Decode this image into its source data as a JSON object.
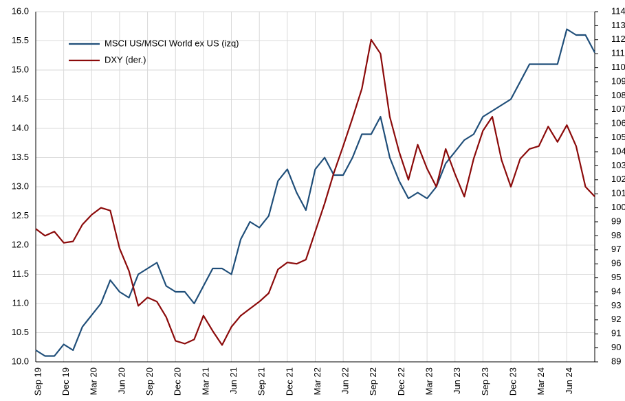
{
  "chart_data": {
    "type": "line",
    "categories": [
      "Sep 19",
      null,
      null,
      "Dec 19",
      null,
      null,
      "Mar 20",
      null,
      null,
      "Jun 20",
      null,
      null,
      "Sep 20",
      null,
      null,
      "Dec 20",
      null,
      null,
      "Mar 21",
      null,
      null,
      "Jun 21",
      null,
      null,
      "Sep 21",
      null,
      null,
      "Dec 21",
      null,
      null,
      "Mar 22",
      null,
      null,
      "Jun 22",
      null,
      null,
      "Sep 22",
      null,
      null,
      "Dec 22",
      null,
      null,
      "Mar 23",
      null,
      null,
      "Jun 23",
      null,
      null,
      "Sep 23",
      null,
      null,
      "Dec 23",
      null,
      null,
      "Mar 24",
      null,
      null,
      "Jun 24",
      null,
      null,
      null
    ],
    "series": [
      {
        "name": "MSCI US/MSCI World ex US (izq)",
        "color": "#1f4e79",
        "values": [
          10.2,
          10.1,
          10.1,
          10.3,
          10.2,
          10.6,
          10.8,
          11.0,
          11.4,
          11.2,
          11.1,
          11.5,
          11.6,
          11.7,
          11.3,
          11.2,
          11.2,
          11.0,
          11.3,
          11.6,
          11.6,
          11.5,
          12.1,
          12.4,
          12.3,
          12.5,
          13.1,
          13.3,
          12.9,
          12.6,
          13.3,
          13.5,
          13.2,
          13.2,
          13.5,
          13.9,
          13.9,
          14.2,
          13.5,
          13.1,
          12.8,
          12.9,
          12.8,
          13.0,
          13.4,
          13.6,
          13.8,
          13.9,
          14.2,
          14.3,
          14.4,
          14.5,
          14.8,
          15.1,
          15.1,
          15.1,
          15.1,
          15.7,
          15.6,
          15.6,
          15.3
        ]
      },
      {
        "name": "DXY (der.)",
        "color": "#8b0a0a",
        "axis": "y2",
        "values": [
          98.5,
          98.0,
          98.3,
          97.5,
          97.6,
          98.8,
          99.5,
          100.0,
          99.8,
          97.1,
          95.5,
          93.0,
          93.6,
          93.3,
          92.2,
          90.5,
          90.3,
          90.6,
          92.3,
          91.2,
          90.2,
          91.5,
          92.3,
          92.8,
          93.3,
          93.9,
          95.6,
          96.1,
          96.0,
          96.3,
          98.3,
          100.3,
          102.5,
          104.4,
          106.4,
          108.5,
          112.0,
          111.0,
          106.5,
          104.0,
          102.0,
          104.5,
          102.8,
          101.5,
          104.2,
          102.4,
          100.8,
          103.5,
          105.5,
          106.5,
          103.4,
          101.5,
          103.5,
          104.2,
          104.4,
          105.8,
          104.7,
          105.9,
          104.4,
          101.5,
          100.8
        ]
      }
    ],
    "ylim": [
      10,
      16
    ],
    "yticks": [
      {
        "value": 10,
        "label": "10.0"
      },
      10.5,
      {
        "value": 11,
        "label": "11.0"
      },
      11.5,
      {
        "value": 12,
        "label": "12.0"
      },
      12.5,
      {
        "value": 13,
        "label": "13.0"
      },
      13.5,
      {
        "value": 14,
        "label": "14.0"
      },
      14.5,
      {
        "value": 15,
        "label": "15.0"
      },
      15.5,
      {
        "value": 16,
        "label": "16.0"
      }
    ],
    "y2lim": [
      89,
      114
    ],
    "y2ticks": [
      89,
      90,
      91,
      92,
      93,
      94,
      95,
      96,
      97,
      98,
      99,
      100,
      101,
      102,
      103,
      104,
      105,
      106,
      107,
      108,
      109,
      110,
      111,
      112,
      113,
      114
    ],
    "grid": true,
    "legend": "upper left"
  }
}
